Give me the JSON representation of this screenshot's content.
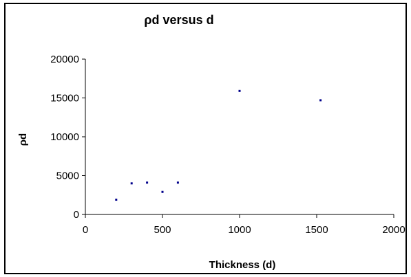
{
  "chart_data": {
    "type": "scatter",
    "title": "ρd versus d",
    "xlabel": "Thickness (d)",
    "ylabel": "ρd",
    "xlim": [
      0,
      2000
    ],
    "ylim": [
      0,
      20000
    ],
    "x_ticks": [
      "0",
      "500",
      "1000",
      "1500",
      "2000"
    ],
    "y_ticks": [
      "0",
      "5000",
      "10000",
      "15000",
      "20000"
    ],
    "grid": false,
    "legend": "none",
    "marker_color": "#00008B",
    "points": [
      {
        "x": 200,
        "y": 1900
      },
      {
        "x": 300,
        "y": 4000
      },
      {
        "x": 400,
        "y": 4100
      },
      {
        "x": 500,
        "y": 2900
      },
      {
        "x": 600,
        "y": 4100
      },
      {
        "x": 1000,
        "y": 15900
      },
      {
        "x": 1525,
        "y": 14700
      }
    ]
  }
}
